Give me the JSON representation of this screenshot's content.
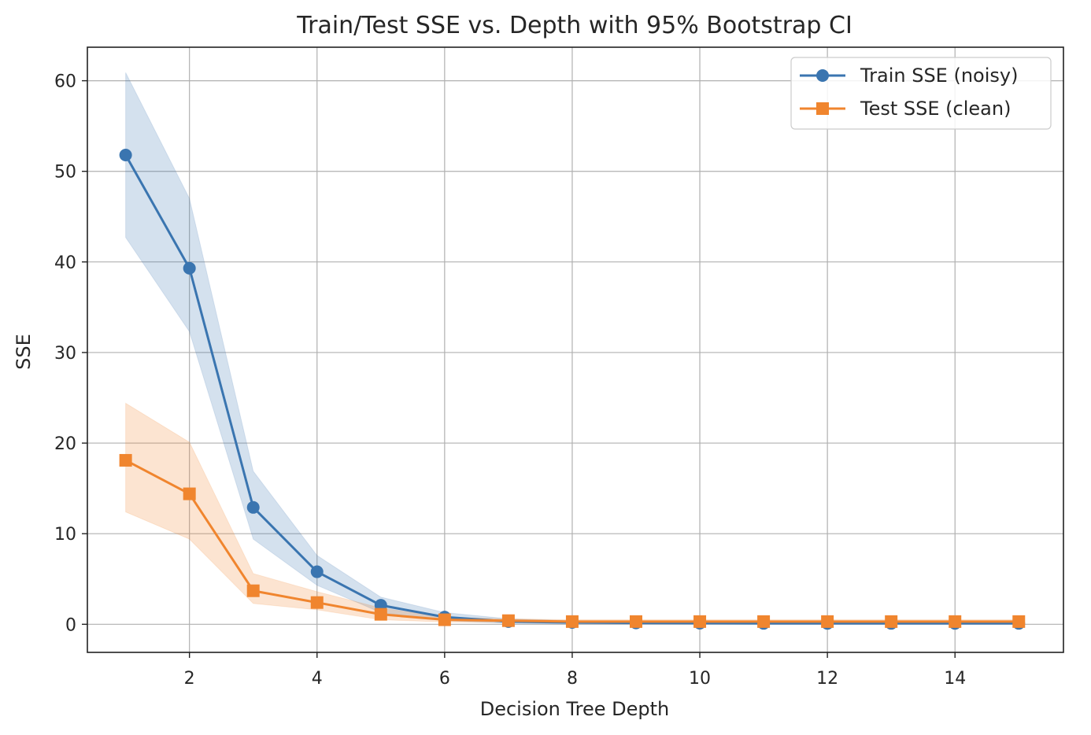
{
  "chart_data": {
    "type": "line",
    "title": "Train/Test SSE vs. Depth with 95% Bootstrap CI",
    "xlabel": "Decision Tree Depth",
    "ylabel": "SSE",
    "xlim": [
      0.4,
      15.7
    ],
    "ylim": [
      -3.1,
      63.7
    ],
    "xticks": [
      2,
      4,
      6,
      8,
      10,
      12,
      14
    ],
    "yticks": [
      0,
      10,
      20,
      30,
      40,
      50,
      60
    ],
    "grid": true,
    "legend_position": "top-right",
    "x": [
      1,
      2,
      3,
      4,
      5,
      6,
      7,
      8,
      9,
      10,
      11,
      12,
      13,
      14,
      15
    ],
    "series": [
      {
        "name": "Train SSE (noisy)",
        "color": "#3a75b0",
        "marker": "circle",
        "values": [
          51.8,
          39.3,
          12.9,
          5.8,
          2.1,
          0.8,
          0.3,
          0.2,
          0.15,
          0.12,
          0.1,
          0.1,
          0.1,
          0.1,
          0.1
        ],
        "ci_lower": [
          42.7,
          32.3,
          9.4,
          4.3,
          1.3,
          0.4,
          0.1,
          0.05,
          0.05,
          0.05,
          0.05,
          0.05,
          0.05,
          0.05,
          0.05
        ],
        "ci_upper": [
          60.9,
          47.0,
          16.9,
          7.6,
          3.0,
          1.3,
          0.6,
          0.4,
          0.35,
          0.3,
          0.3,
          0.3,
          0.3,
          0.3,
          0.3
        ]
      },
      {
        "name": "Test SSE (clean)",
        "color": "#f0852e",
        "marker": "square",
        "values": [
          18.1,
          14.4,
          3.7,
          2.4,
          1.1,
          0.5,
          0.4,
          0.3,
          0.3,
          0.3,
          0.3,
          0.3,
          0.3,
          0.3,
          0.3
        ],
        "ci_lower": [
          12.4,
          9.4,
          2.3,
          1.6,
          0.5,
          0.25,
          0.2,
          0.15,
          0.15,
          0.15,
          0.15,
          0.15,
          0.15,
          0.15,
          0.15
        ],
        "ci_upper": [
          24.4,
          20.1,
          5.6,
          3.6,
          1.8,
          0.8,
          0.6,
          0.5,
          0.5,
          0.5,
          0.5,
          0.5,
          0.5,
          0.5,
          0.5
        ]
      }
    ]
  }
}
